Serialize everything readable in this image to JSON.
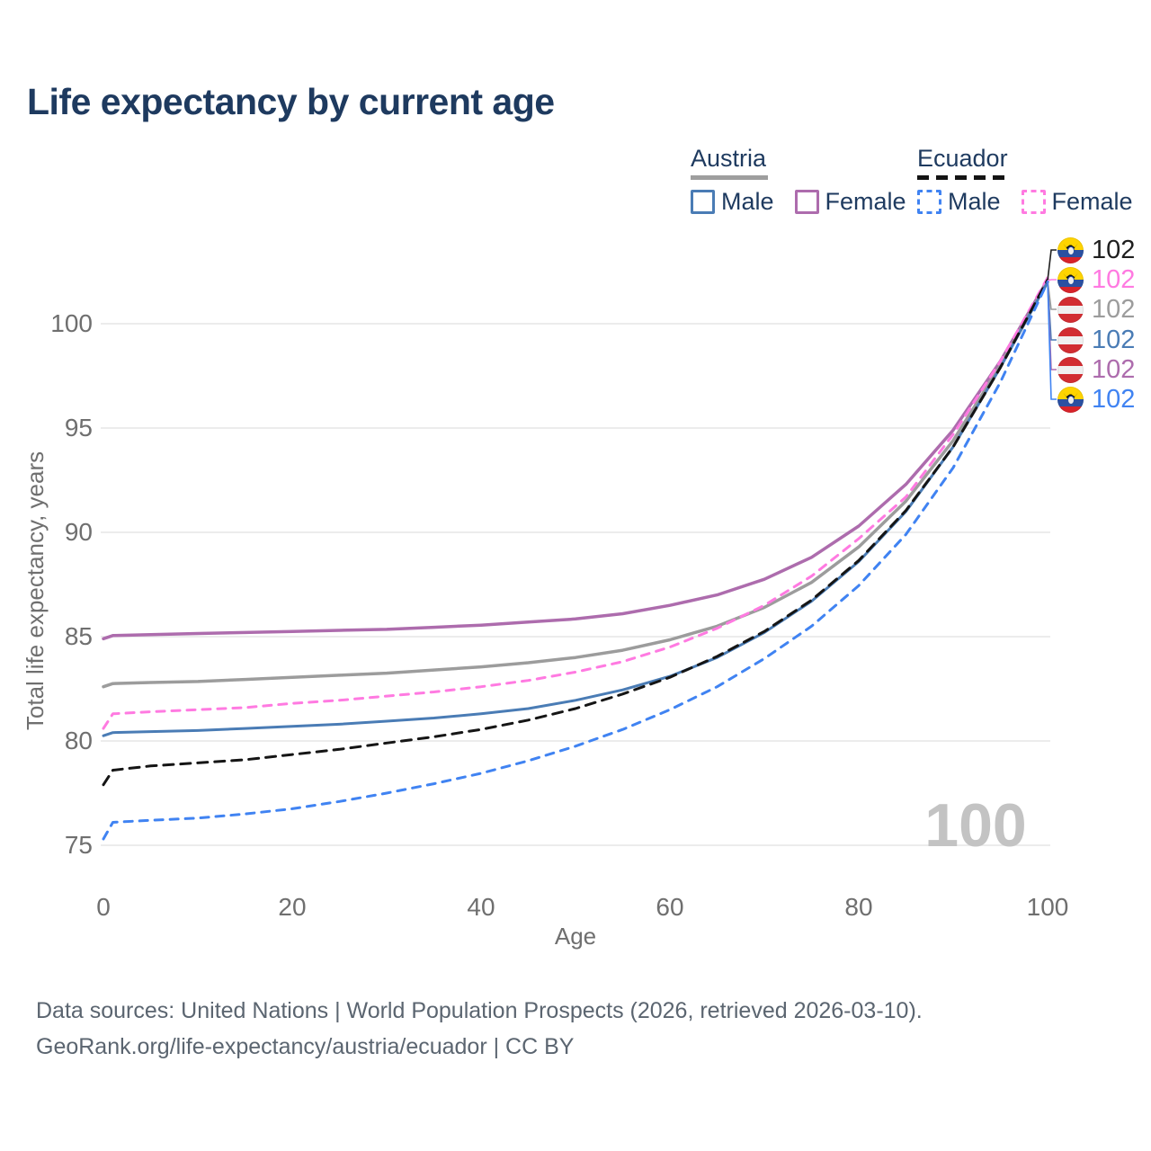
{
  "title": "Life expectancy by current age",
  "colors": {
    "title_text": "#1e3a5f",
    "axis_text": "#6f6f6f",
    "gridline": "#e6e6e6",
    "watermark": "#c3c3c3",
    "footer_text": "#5b6570",
    "austria_male": "#4a7cb5",
    "austria_female": "#ad6cad",
    "austria_total": "#9c9c9c",
    "ecuador_male": "#4083f2",
    "ecuador_female": "#ff7ae1",
    "ecuador_total": "#151515"
  },
  "legend": {
    "groups": [
      {
        "label": "Austria",
        "line_style": "solid",
        "items": [
          {
            "label": "Male",
            "color": "#4a7cb5",
            "style": "solid"
          },
          {
            "label": "Female",
            "color": "#ad6cad",
            "style": "solid"
          }
        ]
      },
      {
        "label": "Ecuador",
        "line_style": "dashed",
        "items": [
          {
            "label": "Male",
            "color": "#4083f2",
            "style": "dashed"
          },
          {
            "label": "Female",
            "color": "#ff7ae1",
            "style": "dashed"
          }
        ]
      }
    ]
  },
  "watermark": "100",
  "chart_data": {
    "type": "line",
    "title": "Life expectancy by current age",
    "xlabel": "Age",
    "ylabel": "Total life expectancy, years",
    "xlim": [
      0,
      100
    ],
    "ylim": [
      75,
      102.5
    ],
    "xticks": [
      0,
      20,
      40,
      60,
      80,
      100
    ],
    "yticks": [
      75,
      80,
      85,
      90,
      95,
      100
    ],
    "grid": "horizontal",
    "legend_position": "top-right",
    "series": [
      {
        "name": "Austria Female",
        "country": "Austria",
        "sex": "Female",
        "color": "#ad6cad",
        "dash": "none",
        "width": 3.5,
        "points": [
          [
            0,
            84.9
          ],
          [
            1,
            85.05
          ],
          [
            5,
            85.1
          ],
          [
            10,
            85.15
          ],
          [
            15,
            85.2
          ],
          [
            20,
            85.25
          ],
          [
            25,
            85.3
          ],
          [
            30,
            85.35
          ],
          [
            35,
            85.45
          ],
          [
            40,
            85.55
          ],
          [
            45,
            85.7
          ],
          [
            50,
            85.85
          ],
          [
            55,
            86.1
          ],
          [
            60,
            86.5
          ],
          [
            65,
            87.0
          ],
          [
            70,
            87.75
          ],
          [
            75,
            88.8
          ],
          [
            80,
            90.3
          ],
          [
            85,
            92.3
          ],
          [
            90,
            94.9
          ],
          [
            95,
            98.2
          ],
          [
            100,
            102.1
          ]
        ]
      },
      {
        "name": "Austria",
        "country": "Austria",
        "sex": "Total",
        "color": "#9c9c9c",
        "dash": "none",
        "width": 3.5,
        "points": [
          [
            0,
            82.6
          ],
          [
            1,
            82.75
          ],
          [
            5,
            82.8
          ],
          [
            10,
            82.85
          ],
          [
            15,
            82.95
          ],
          [
            20,
            83.05
          ],
          [
            25,
            83.15
          ],
          [
            30,
            83.25
          ],
          [
            35,
            83.4
          ],
          [
            40,
            83.55
          ],
          [
            45,
            83.75
          ],
          [
            50,
            84.0
          ],
          [
            55,
            84.35
          ],
          [
            60,
            84.85
          ],
          [
            65,
            85.5
          ],
          [
            70,
            86.4
          ],
          [
            75,
            87.6
          ],
          [
            80,
            89.3
          ],
          [
            85,
            91.5
          ],
          [
            90,
            94.4
          ],
          [
            95,
            98.0
          ],
          [
            100,
            102.0
          ]
        ]
      },
      {
        "name": "Ecuador Female",
        "country": "Ecuador",
        "sex": "Female",
        "color": "#ff7ae1",
        "dash": "9 8",
        "width": 3,
        "points": [
          [
            0,
            80.6
          ],
          [
            1,
            81.3
          ],
          [
            5,
            81.4
          ],
          [
            10,
            81.5
          ],
          [
            15,
            81.6
          ],
          [
            20,
            81.8
          ],
          [
            25,
            81.95
          ],
          [
            30,
            82.15
          ],
          [
            35,
            82.35
          ],
          [
            40,
            82.6
          ],
          [
            45,
            82.9
          ],
          [
            50,
            83.3
          ],
          [
            55,
            83.8
          ],
          [
            60,
            84.5
          ],
          [
            65,
            85.4
          ],
          [
            70,
            86.5
          ],
          [
            75,
            87.9
          ],
          [
            80,
            89.7
          ],
          [
            85,
            91.7
          ],
          [
            90,
            94.7
          ],
          [
            95,
            98.2
          ],
          [
            100,
            102.2
          ]
        ]
      },
      {
        "name": "Austria Male",
        "country": "Austria",
        "sex": "Male",
        "color": "#4a7cb5",
        "dash": "none",
        "width": 3,
        "points": [
          [
            0,
            80.25
          ],
          [
            1,
            80.4
          ],
          [
            5,
            80.45
          ],
          [
            10,
            80.5
          ],
          [
            15,
            80.6
          ],
          [
            20,
            80.7
          ],
          [
            25,
            80.8
          ],
          [
            30,
            80.95
          ],
          [
            35,
            81.1
          ],
          [
            40,
            81.3
          ],
          [
            45,
            81.55
          ],
          [
            50,
            81.95
          ],
          [
            55,
            82.45
          ],
          [
            60,
            83.1
          ],
          [
            65,
            84.0
          ],
          [
            70,
            85.2
          ],
          [
            75,
            86.7
          ],
          [
            80,
            88.6
          ],
          [
            85,
            91.0
          ],
          [
            90,
            94.1
          ],
          [
            95,
            97.9
          ],
          [
            100,
            102.0
          ]
        ]
      },
      {
        "name": "Ecuador",
        "country": "Ecuador",
        "sex": "Total",
        "color": "#151515",
        "dash": "11 8",
        "width": 3,
        "points": [
          [
            0,
            77.9
          ],
          [
            1,
            78.6
          ],
          [
            5,
            78.8
          ],
          [
            10,
            78.95
          ],
          [
            15,
            79.1
          ],
          [
            20,
            79.35
          ],
          [
            25,
            79.6
          ],
          [
            30,
            79.9
          ],
          [
            35,
            80.2
          ],
          [
            40,
            80.55
          ],
          [
            45,
            81.0
          ],
          [
            50,
            81.55
          ],
          [
            55,
            82.25
          ],
          [
            60,
            83.05
          ],
          [
            65,
            84.05
          ],
          [
            70,
            85.25
          ],
          [
            75,
            86.75
          ],
          [
            80,
            88.65
          ],
          [
            85,
            91.05
          ],
          [
            90,
            94.1
          ],
          [
            95,
            97.9
          ],
          [
            100,
            102.1
          ]
        ]
      },
      {
        "name": "Ecuador Male",
        "country": "Ecuador",
        "sex": "Male",
        "color": "#4083f2",
        "dash": "9 8",
        "width": 3,
        "points": [
          [
            0,
            75.3
          ],
          [
            1,
            76.1
          ],
          [
            5,
            76.2
          ],
          [
            10,
            76.3
          ],
          [
            15,
            76.5
          ],
          [
            20,
            76.75
          ],
          [
            25,
            77.1
          ],
          [
            30,
            77.5
          ],
          [
            35,
            77.95
          ],
          [
            40,
            78.45
          ],
          [
            45,
            79.05
          ],
          [
            50,
            79.75
          ],
          [
            55,
            80.55
          ],
          [
            60,
            81.5
          ],
          [
            65,
            82.6
          ],
          [
            70,
            83.95
          ],
          [
            75,
            85.5
          ],
          [
            80,
            87.45
          ],
          [
            85,
            89.9
          ],
          [
            90,
            93.1
          ],
          [
            95,
            97.2
          ],
          [
            100,
            102.0
          ]
        ]
      }
    ]
  },
  "end_labels": [
    {
      "value": "102",
      "flag": "ecuador",
      "color": "#1f1f1f",
      "series": "Ecuador"
    },
    {
      "value": "102",
      "flag": "ecuador",
      "color": "#ff7ae1",
      "series": "Ecuador Female"
    },
    {
      "value": "102",
      "flag": "austria",
      "color": "#9c9c9c",
      "series": "Austria"
    },
    {
      "value": "102",
      "flag": "austria",
      "color": "#4a7cb5",
      "series": "Austria Male"
    },
    {
      "value": "102",
      "flag": "austria",
      "color": "#ad6cad",
      "series": "Austria Female"
    },
    {
      "value": "102",
      "flag": "ecuador",
      "color": "#4083f2",
      "series": "Ecuador Male"
    }
  ],
  "footer": {
    "line1": "Data sources: United Nations | World Population Prospects (2026, retrieved 2026-03-10).",
    "line2": "GeoRank.org/life-expectancy/austria/ecuador | CC BY"
  }
}
